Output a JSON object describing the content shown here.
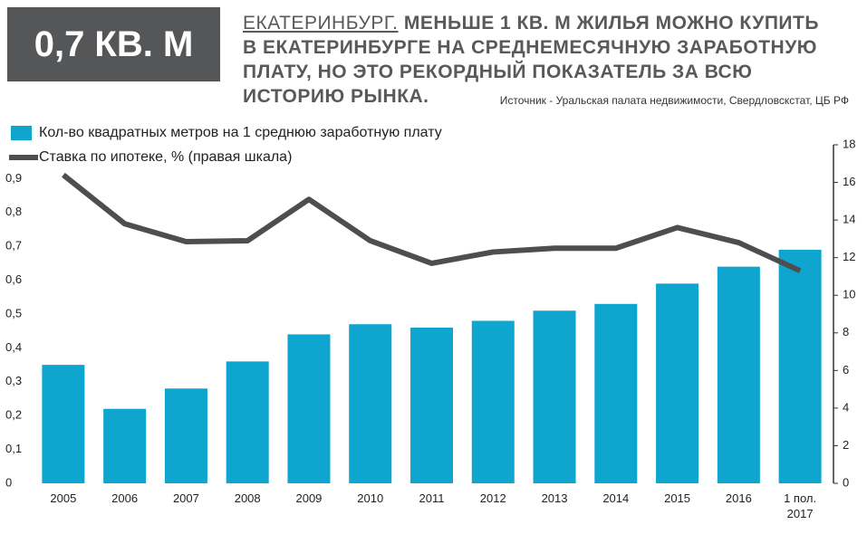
{
  "chart_data": {
    "type": "bar",
    "badge": "0,7 КВ. М",
    "title_lead": "ЕКАТЕРИНБУРГ.",
    "title": "МЕНЬШЕ 1 КВ. М ЖИЛЬЯ МОЖНО КУПИТЬ В ЕКАТЕРИНБУРГЕ НА СРЕДНЕМЕСЯЧНУЮ ЗАРАБОТНУЮ ПЛАТУ, НО ЭТО РЕКОРДНЫЙ ПОКАЗАТЕЛЬ ЗА ВСЮ ИСТОРИЮ РЫНКА.",
    "source": "Источник - Уральская палата недвижимости, Свердловскстат, ЦБ РФ",
    "categories": [
      "2005",
      "2006",
      "2007",
      "2008",
      "2009",
      "2010",
      "2011",
      "2012",
      "2013",
      "2014",
      "2015",
      "2016",
      "1 пол. 2017"
    ],
    "series": [
      {
        "name": "Кол-во квадратных метров на 1 среднюю заработную плату",
        "type": "bar",
        "color": "#0ea5cf",
        "values": [
          0.35,
          0.22,
          0.28,
          0.36,
          0.44,
          0.47,
          0.46,
          0.48,
          0.51,
          0.53,
          0.59,
          0.64,
          0.69
        ]
      },
      {
        "name": "Ставка по ипотеке, % (правая шкала)",
        "type": "line",
        "axis": "y2",
        "color": "#4d4e50",
        "values": [
          16.4,
          13.8,
          12.85,
          12.9,
          15.1,
          12.9,
          11.7,
          12.3,
          12.5,
          12.5,
          13.6,
          12.8,
          11.3
        ]
      }
    ],
    "ylim": [
      0,
      1
    ],
    "yticks": [
      0,
      {
        "value": 0.1,
        "label": "0,1"
      },
      {
        "value": 0.2,
        "label": "0,2"
      },
      {
        "value": 0.3,
        "label": "0,3"
      },
      {
        "value": 0.4,
        "label": "0,4"
      },
      {
        "value": 0.5,
        "label": "0,5"
      },
      {
        "value": 0.6,
        "label": "0,6"
      },
      {
        "value": 0.7,
        "label": "0,7"
      },
      {
        "value": 0.8,
        "label": "0,8"
      },
      {
        "value": 0.9,
        "label": "0,9"
      }
    ],
    "y2lim": [
      0,
      18
    ],
    "y2ticks": [
      0,
      2,
      4,
      6,
      8,
      10,
      12,
      14,
      16,
      18
    ]
  }
}
